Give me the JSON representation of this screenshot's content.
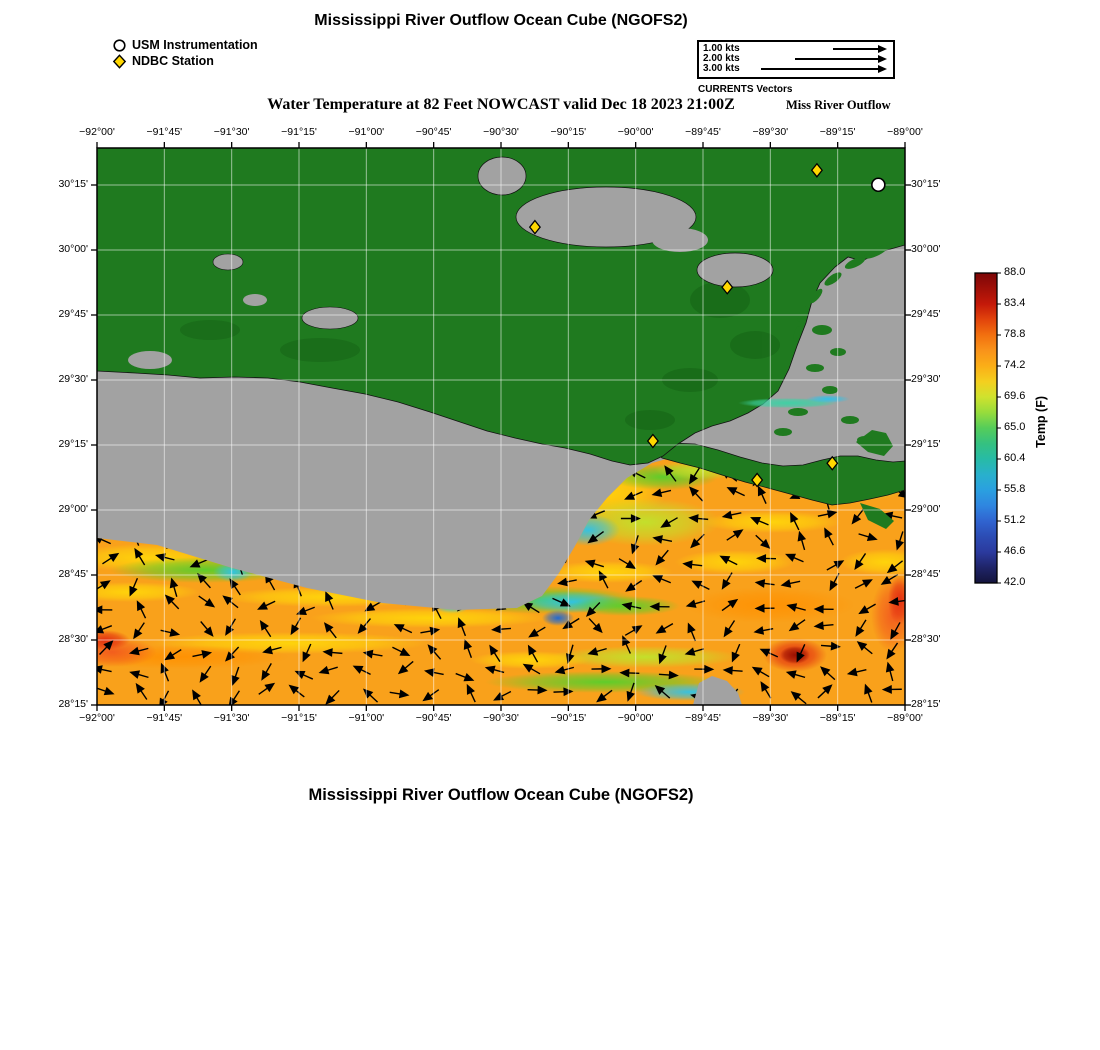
{
  "header": {
    "title": "Mississippi River Outflow Ocean Cube (NGOFS2)",
    "subtitle": "Water Temperature at 82 Feet NOWCAST valid Dec 18 2023 21:00Z",
    "region_label": "Miss River Outflow"
  },
  "footer": {
    "title": "Mississippi River Outflow Ocean Cube (NGOFS2)"
  },
  "marker_legend": {
    "items": [
      {
        "symbol": "circle",
        "label": "USM Instrumentation"
      },
      {
        "symbol": "diamond",
        "label": "NDBC Station"
      }
    ]
  },
  "vector_legend": {
    "caption": "CURRENTS Vectors",
    "items": [
      {
        "label": "1.00 kts",
        "kts": 1.0
      },
      {
        "label": "2.00 kts",
        "kts": 2.0
      },
      {
        "label": "3.00 kts",
        "kts": 3.0
      }
    ]
  },
  "map": {
    "x_ticks": [
      "−92°00'",
      "−91°45'",
      "−91°30'",
      "−91°15'",
      "−91°00'",
      "−90°45'",
      "−90°30'",
      "−90°15'",
      "−90°00'",
      "−89°45'",
      "−89°30'",
      "−89°15'",
      "−89°00'"
    ],
    "y_ticks": [
      "30°15'",
      "30°00'",
      "29°45'",
      "29°30'",
      "29°15'",
      "29°00'",
      "28°45'",
      "28°30'",
      "28°15'"
    ],
    "ndbc_stations": [
      {
        "fx": 0.542,
        "fy": 0.142
      },
      {
        "fx": 0.891,
        "fy": 0.04
      },
      {
        "fx": 0.78,
        "fy": 0.25
      },
      {
        "fx": 0.688,
        "fy": 0.526
      },
      {
        "fx": 0.817,
        "fy": 0.596
      },
      {
        "fx": 0.91,
        "fy": 0.566
      }
    ],
    "usm_station": {
      "fx": 0.967,
      "fy": 0.066
    },
    "colors": {
      "land_green": "#1f7a1f",
      "nodata_gray": "#a2a2a2",
      "station_yellow": "#ffd700",
      "water_base_orange": "#f9a11b"
    }
  },
  "colorbar": {
    "title": "Temp (F)",
    "min": 42.0,
    "max": 88.0,
    "ticks": [
      "88.0",
      "83.4",
      "78.8",
      "74.2",
      "69.6",
      "65.0",
      "60.4",
      "55.8",
      "51.2",
      "46.6",
      "42.0"
    ]
  }
}
